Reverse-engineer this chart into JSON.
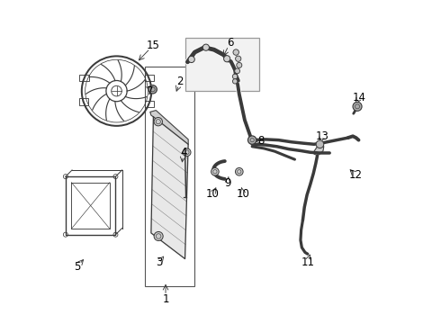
{
  "bg_color": "#ffffff",
  "line_color": "#3a3a3a",
  "label_color": "#000000",
  "fig_width": 4.9,
  "fig_height": 3.6,
  "dpi": 100,
  "label_fontsize": 8.5,
  "label_positions": {
    "1": [
      0.33,
      0.075,
      0.33,
      0.13
    ],
    "2": [
      0.375,
      0.75,
      0.36,
      0.71
    ],
    "3": [
      0.31,
      0.19,
      0.33,
      0.215
    ],
    "4": [
      0.385,
      0.53,
      0.38,
      0.49
    ],
    "5": [
      0.055,
      0.175,
      0.082,
      0.205
    ],
    "6": [
      0.53,
      0.87,
      0.505,
      0.82
    ],
    "7": [
      0.282,
      0.72,
      0.285,
      0.71
    ],
    "8": [
      0.625,
      0.565,
      0.605,
      0.565
    ],
    "9": [
      0.522,
      0.435,
      0.525,
      0.455
    ],
    "10a": [
      0.475,
      0.4,
      0.487,
      0.422
    ],
    "10b": [
      0.57,
      0.4,
      0.565,
      0.422
    ],
    "11": [
      0.77,
      0.19,
      0.778,
      0.215
    ],
    "12": [
      0.918,
      0.46,
      0.9,
      0.478
    ],
    "13": [
      0.815,
      0.58,
      0.808,
      0.558
    ],
    "14": [
      0.93,
      0.7,
      0.918,
      0.68
    ],
    "15": [
      0.29,
      0.86,
      0.24,
      0.808
    ]
  }
}
